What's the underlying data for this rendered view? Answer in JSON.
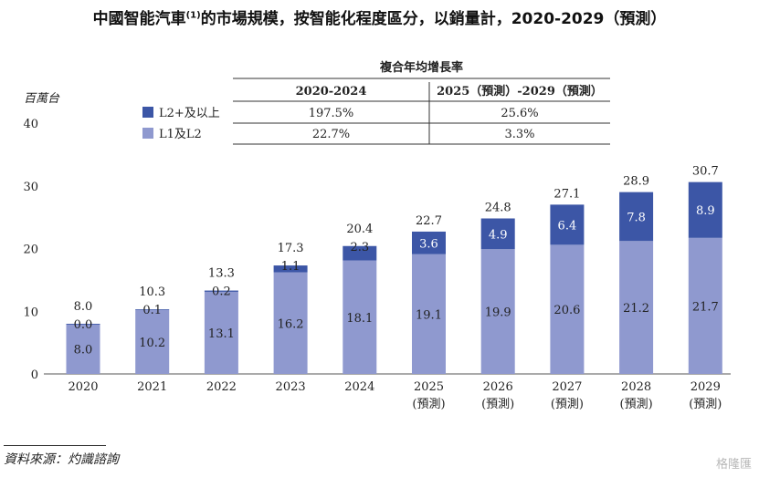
{
  "title": {
    "main": "中國智能汽車",
    "note": "(1)",
    "rest": "的市場規模，按智能化程度區分，以銷量計，2020-2029（預測）"
  },
  "colors": {
    "l2plus": "#3c56a6",
    "l1l2": "#8f99cf"
  },
  "growth_table": {
    "caption": "複合年均增長率",
    "headers": [
      "2020-2024",
      "2025（預測）-2029（預測）"
    ],
    "rows": [
      {
        "label": "L2+及以上",
        "values": [
          "197.5%",
          "25.6%"
        ]
      },
      {
        "label": "L1及L2",
        "values": [
          "22.7%",
          "3.3%"
        ]
      }
    ]
  },
  "source": "資料來源：灼識諮詢",
  "watermark": "格隆匯",
  "chart_data": {
    "type": "bar",
    "stacked": true,
    "ylabel": "百萬台",
    "ylim": [
      0,
      40
    ],
    "yticks": [
      0,
      10,
      20,
      30,
      40
    ],
    "grid": false,
    "legend_position": "top-left",
    "categories": [
      "2020",
      "2021",
      "2022",
      "2023",
      "2024",
      "2025",
      "2026",
      "2027",
      "2028",
      "2029"
    ],
    "category_sublabels": [
      "",
      "",
      "",
      "",
      "",
      "(預測)",
      "(預測)",
      "(預測)",
      "(預測)",
      "(預測)"
    ],
    "series": [
      {
        "name": "L1及L2",
        "values": [
          8.0,
          10.2,
          13.1,
          16.2,
          18.1,
          19.1,
          19.9,
          20.6,
          21.2,
          21.7
        ]
      },
      {
        "name": "L2+及以上",
        "values": [
          0.0,
          0.1,
          0.2,
          1.1,
          2.3,
          3.6,
          4.9,
          6.4,
          7.8,
          8.9
        ]
      }
    ],
    "totals": [
      8.0,
      10.3,
      13.3,
      17.3,
      20.4,
      22.7,
      24.8,
      27.1,
      28.9,
      30.7
    ]
  }
}
